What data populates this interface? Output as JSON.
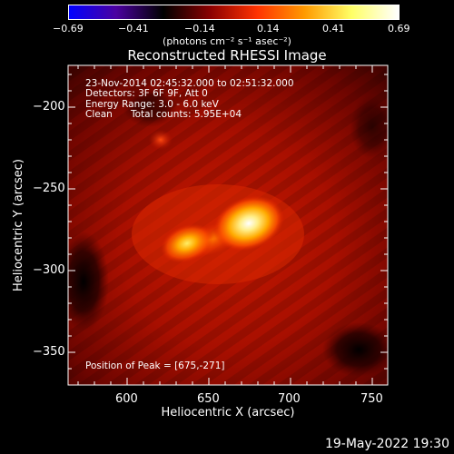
{
  "colorbar": {
    "ticks": [
      "−0.69",
      "−0.41",
      "−0.14",
      "0.14",
      "0.41",
      "0.69"
    ],
    "unit": "(photons cm⁻² s⁻¹ asec⁻²)",
    "colormap": [
      "#0000ff",
      "#4b00a0",
      "#000000",
      "#8b0000",
      "#ff3300",
      "#ff9900",
      "#ffff66",
      "#ffffff"
    ]
  },
  "title": "Reconstructed RHESSI Image",
  "info": {
    "line1": "23-Nov-2014 02:45:32.000 to 02:51:32.000",
    "line2": "Detectors: 3F 6F 9F, Att 0",
    "line3": "Energy Range: 3.0 - 6.0 keV",
    "line4_a": "Clean",
    "line4_b": "Total counts: 5.95E+04",
    "peak": "Position of Peak = [675,-271]"
  },
  "axes": {
    "xlabel": "Heliocentric X (arcsec)",
    "ylabel": "Heliocentric Y (arcsec)",
    "xticks": [
      "600",
      "650",
      "700",
      "750"
    ],
    "yticks": [
      "−200",
      "−250",
      "−300",
      "−350"
    ]
  },
  "timestamp": "19-May-2022 19:30"
}
